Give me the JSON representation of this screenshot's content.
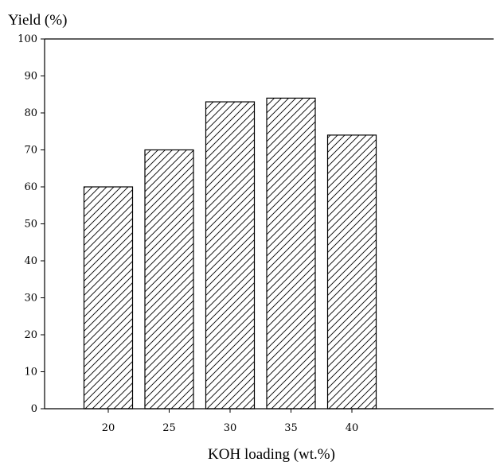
{
  "chart_data": {
    "type": "bar",
    "categories": [
      "20",
      "25",
      "30",
      "35",
      "40"
    ],
    "values": [
      60,
      70,
      83,
      84,
      74
    ],
    "title": "",
    "xlabel": "KOH loading (wt.%)",
    "ylabel": "Yield (%)",
    "ylim": [
      0,
      100
    ],
    "yticks": [
      "0",
      "10",
      "20",
      "30",
      "40",
      "50",
      "60",
      "70",
      "80",
      "90",
      "100"
    ],
    "grid": false,
    "legend": "none",
    "bar_fill": "hatched",
    "colors": {
      "bar_stroke": "#000000",
      "hatch": "#000000",
      "background": "#ffffff"
    }
  }
}
